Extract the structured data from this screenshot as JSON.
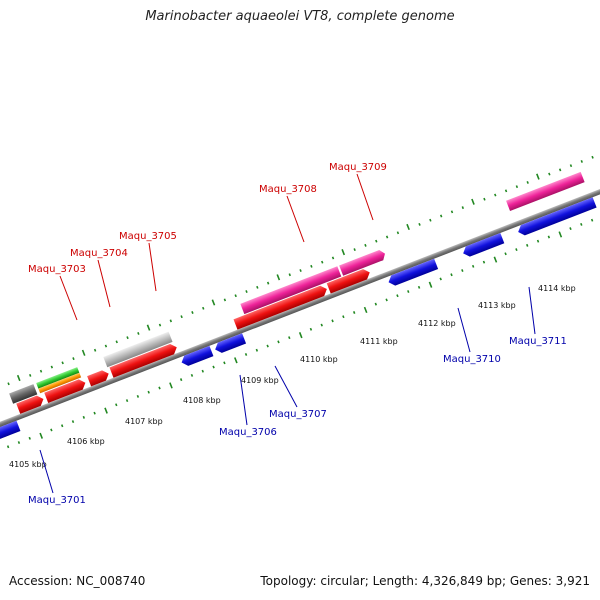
{
  "title": "Marinobacter aquaeolei VT8, complete genome",
  "footer": {
    "accession": "Accession: NC_008740",
    "summary": "Topology: circular; Length: 4,326,849 bp; Genes: 3,921"
  },
  "ticks": [
    "4105 kbp",
    "4106 kbp",
    "4107 kbp",
    "4108 kbp",
    "4109 kbp",
    "4110 kbp",
    "4111 kbp",
    "4112 kbp",
    "4113 kbp",
    "4114 kbp"
  ],
  "gene_labels": {
    "forward": [
      "Maqu_3703",
      "Maqu_3704",
      "Maqu_3705",
      "Maqu_3708",
      "Maqu_3709"
    ],
    "reverse": [
      "Maqu_3701",
      "Maqu_3706",
      "Maqu_3707",
      "Maqu_3710",
      "Maqu_3711"
    ]
  },
  "colors": {
    "forward_label": "#cc0000",
    "reverse_label": "#0000aa",
    "backbone": "#777777",
    "tick_marks": "#228822",
    "cds_red": "#ee1111",
    "cds_pink": "#ee2299",
    "cds_blue": "#1111dd",
    "cds_gray": "#666666",
    "cds_lightgray": "#bbbbbb",
    "cds_green": "#33cc33",
    "cds_orange": "#ff9900"
  }
}
